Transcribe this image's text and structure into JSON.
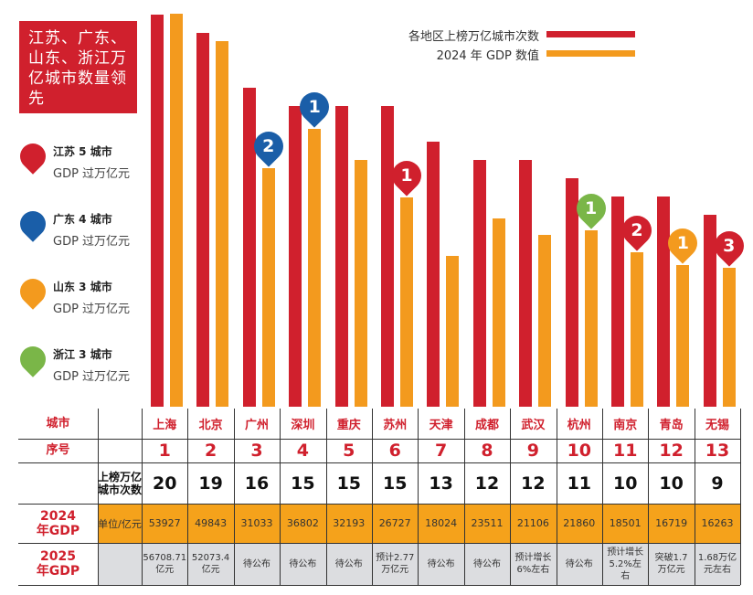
{
  "title": "江苏、广东、山东、浙江万亿城市数量领先",
  "legend_provinces": [
    {
      "name": "江苏 5 城市",
      "sub": "GDP 过万亿元",
      "color": "#d0202d"
    },
    {
      "name": "广东 4 城市",
      "sub": "GDP 过万亿元",
      "color": "#1a5ea8"
    },
    {
      "name": "山东 3 城市",
      "sub": "GDP 过万亿元",
      "color": "#f39a1e"
    },
    {
      "name": "浙江 3 城市",
      "sub": "GDP 过万亿元",
      "color": "#7ab648"
    }
  ],
  "table": {
    "row_labels": {
      "city": "城市",
      "rank": "序号",
      "count": "上榜万亿城市次数",
      "gdp2024": "2024年GDP",
      "gdp2025": "2025年GDP"
    },
    "unit": "单位/亿元",
    "gdp2025": [
      "56708.71亿元",
      "52073.4亿元",
      "待公布",
      "待公布",
      "待公布",
      "预计2.77万亿元",
      "待公布",
      "待公布",
      "预计增长6%左右",
      "待公布",
      "预计增长5.2%左右",
      "突破1.7万亿元",
      "1.68万亿元左右"
    ]
  },
  "chart_data": {
    "type": "bar",
    "categories": [
      "上海",
      "北京",
      "广州",
      "深圳",
      "重庆",
      "苏州",
      "天津",
      "成都",
      "武汉",
      "杭州",
      "南京",
      "青岛",
      "无锡"
    ],
    "ranks": [
      1,
      2,
      3,
      4,
      5,
      6,
      7,
      8,
      9,
      10,
      11,
      12,
      13
    ],
    "series": [
      {
        "name": "各地区上榜万亿城市次数",
        "color": "#d0202d",
        "values": [
          20,
          19,
          16,
          15,
          15,
          15,
          13,
          12,
          12,
          11,
          10,
          10,
          9
        ]
      },
      {
        "name": "2024 年 GDP 数值",
        "color": "#f39a1e",
        "values": [
          53927,
          49843,
          31033,
          36802,
          32193,
          26727,
          18024,
          23511,
          21106,
          21860,
          18501,
          16719,
          16263
        ]
      }
    ],
    "legend": "top-right",
    "markers": [
      {
        "city": "广州",
        "label": "2",
        "color": "#1a5ea8"
      },
      {
        "city": "深圳",
        "label": "1",
        "color": "#1a5ea8"
      },
      {
        "city": "苏州",
        "label": "1",
        "color": "#d0202d"
      },
      {
        "city": "杭州",
        "label": "1",
        "color": "#7ab648"
      },
      {
        "city": "南京",
        "label": "2",
        "color": "#d0202d"
      },
      {
        "city": "青岛",
        "label": "1",
        "color": "#f39a1e"
      },
      {
        "city": "无锡",
        "label": "3",
        "color": "#d0202d"
      }
    ]
  }
}
